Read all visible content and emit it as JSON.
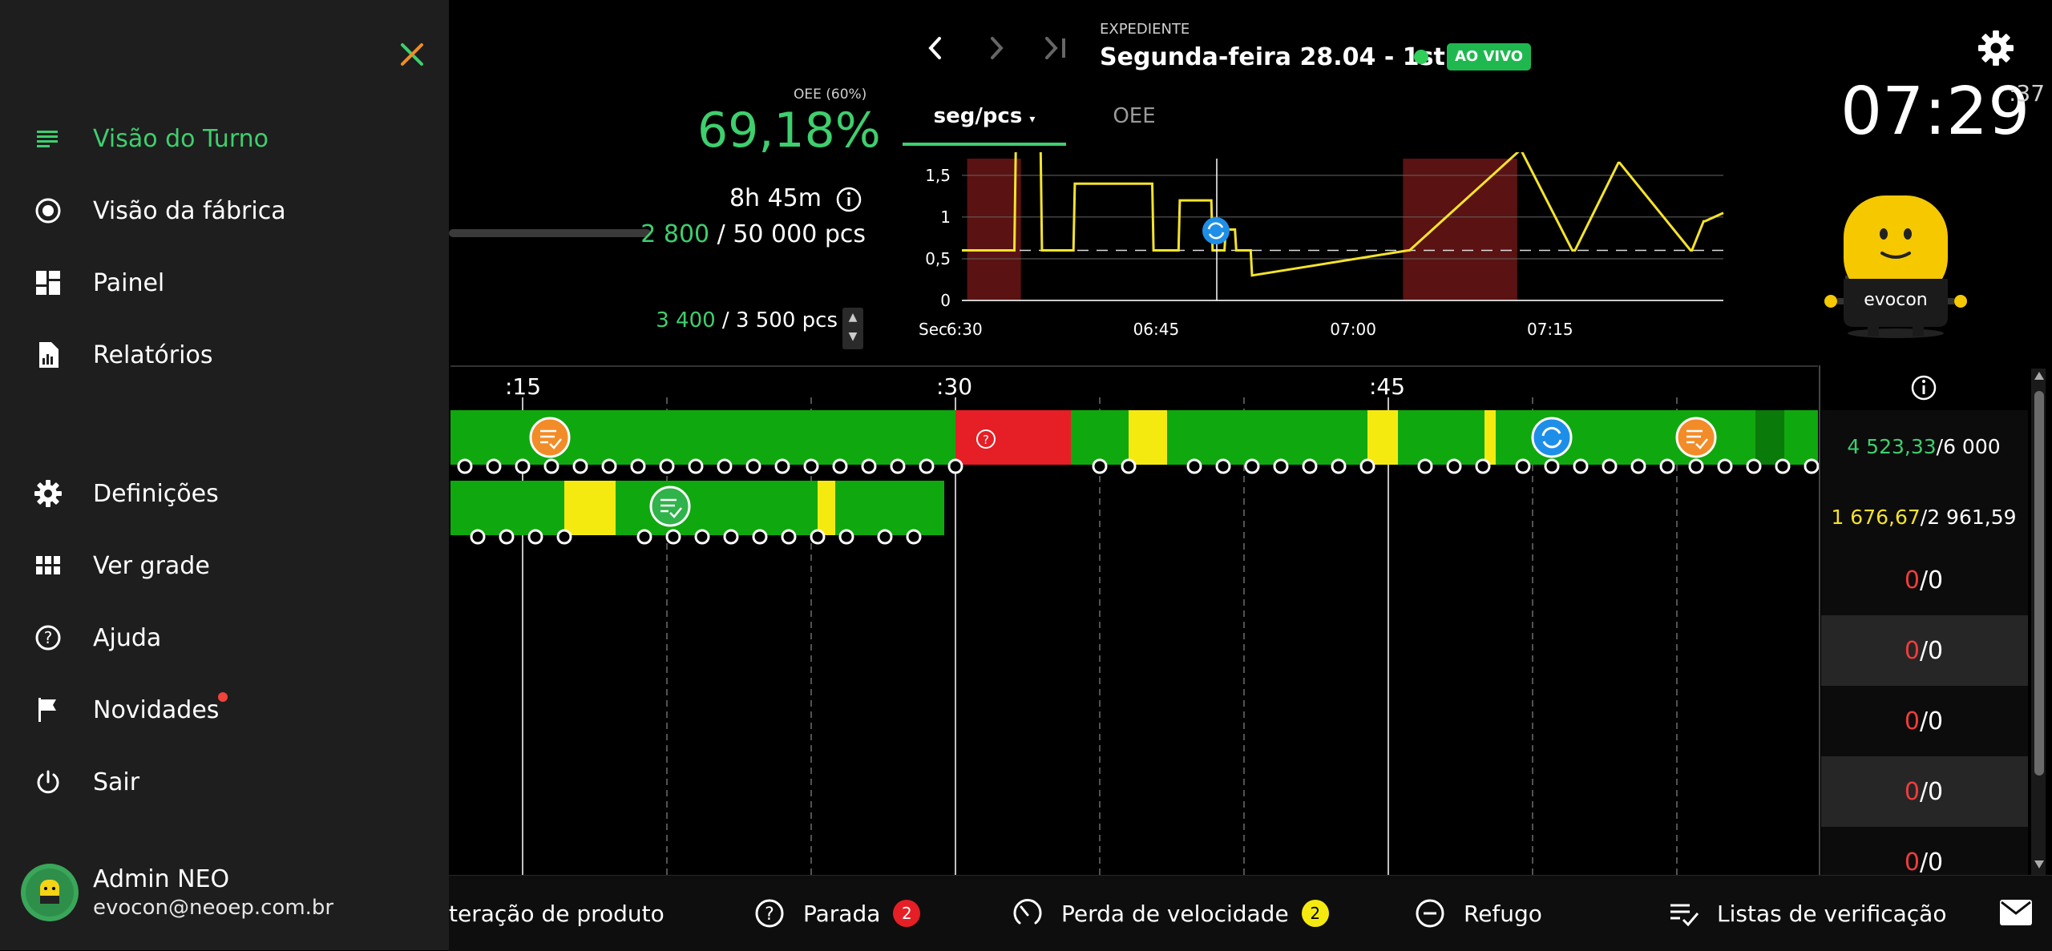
{
  "sidebar": {
    "items": [
      {
        "label": "Visão do Turno",
        "icon": "list-icon",
        "active": true
      },
      {
        "label": "Visão da fábrica",
        "icon": "radio-icon"
      },
      {
        "label": "Painel",
        "icon": "dashboard-icon"
      },
      {
        "label": "Relatórios",
        "icon": "report-icon"
      },
      {
        "label": "Definições",
        "icon": "gear-icon"
      },
      {
        "label": "Ver grade",
        "icon": "grid-icon"
      },
      {
        "label": "Ajuda",
        "icon": "help-icon"
      },
      {
        "label": "Novidades",
        "icon": "flag-icon",
        "has_notification": true
      },
      {
        "label": "Sair",
        "icon": "power-icon"
      }
    ],
    "user": {
      "name": "Admin NEO",
      "email": "evocon@neoep.com.br"
    }
  },
  "header": {
    "shift_label": "EXPEDIENTE",
    "shift_title": "Segunda-feira 28.04 - 1st",
    "live_badge": "AO VIVO",
    "clock": "07:29",
    "clock_seconds": ":37",
    "mascot_brand": "evocon"
  },
  "summary": {
    "oee_label": "OEE (60%)",
    "oee_value": "69,18%",
    "time_left": "8h 45m",
    "produced": "2 800",
    "target": "/ 50 000 pcs",
    "produced2": "3 400",
    "target2": "/ 3 500 pcs"
  },
  "tabs": [
    {
      "label": "seg/pcs",
      "active": true
    },
    {
      "label": "OEE",
      "active": false
    }
  ],
  "chart_data": {
    "type": "line",
    "xlabel": "Sec",
    "ylim": [
      0,
      1.7
    ],
    "yticks": [
      "1,5",
      "1",
      "0,5",
      "0"
    ],
    "xticks": [
      "6:30",
      "06:45",
      "07:00",
      "07:15"
    ],
    "x": [
      0,
      4,
      4.1,
      6,
      6.1,
      8.5,
      8.6,
      14.5,
      14.6,
      16.5,
      16.6,
      19,
      19.1,
      20,
      20.1,
      20.8,
      20.9,
      22,
      22.1,
      34,
      34.1,
      42.5,
      42.6,
      46.5,
      46.7,
      50,
      50.1,
      55.5,
      55.6,
      56.5,
      56.6,
      58
    ],
    "values": [
      0.6,
      0.6,
      1.8,
      1.8,
      0.6,
      0.6,
      1.4,
      1.4,
      0.6,
      0.6,
      1.2,
      1.2,
      0.6,
      0.6,
      0.85,
      0.85,
      0.6,
      0.6,
      0.3,
      0.6,
      0.6,
      1.8,
      1.8,
      0.6,
      0.6,
      1.65,
      1.65,
      0.6,
      0.6,
      0.95,
      0.95,
      1.05
    ],
    "target_line": 0.6,
    "stops": [
      [
        0.4,
        4.5
      ],
      [
        33.6,
        42.3
      ]
    ],
    "line_color": "#f5e32a",
    "stop_color": "#5a1212"
  },
  "timeline": {
    "time_labels": [
      ":15",
      ":30",
      ":45"
    ],
    "rows": [
      {
        "value": "4 523,33",
        "target": "/6 000",
        "value_color": "green"
      },
      {
        "value": "1 676,67",
        "target": "/2 961,59",
        "value_color": "yellow"
      },
      {
        "value": "0",
        "target": "/0",
        "value_color": "red"
      },
      {
        "value": "0",
        "target": "/0",
        "value_color": "red"
      },
      {
        "value": "0",
        "target": "/0",
        "value_color": "red"
      },
      {
        "value": "0",
        "target": "/0",
        "value_color": "red"
      },
      {
        "value": "0",
        "target": "/0",
        "value_color": "red"
      }
    ],
    "colors": {
      "run": "#10a80f",
      "slow": "#f5ea0f",
      "stop": "#e51f25",
      "dark": "#0a7a0a"
    }
  },
  "bottom_bar": {
    "items": [
      {
        "label": "teração de produto",
        "icon": "product-change-icon"
      },
      {
        "label": "Parada",
        "icon": "help-icon",
        "count": "2",
        "badge_color": "#e51f25"
      },
      {
        "label": "Perda de velocidade",
        "icon": "speed-icon",
        "count": "2",
        "badge_color": "#f5ea0f"
      },
      {
        "label": "Refugo",
        "icon": "minus-circle-icon"
      },
      {
        "label": "Listas de verificação",
        "icon": "checklist-icon"
      }
    ]
  }
}
